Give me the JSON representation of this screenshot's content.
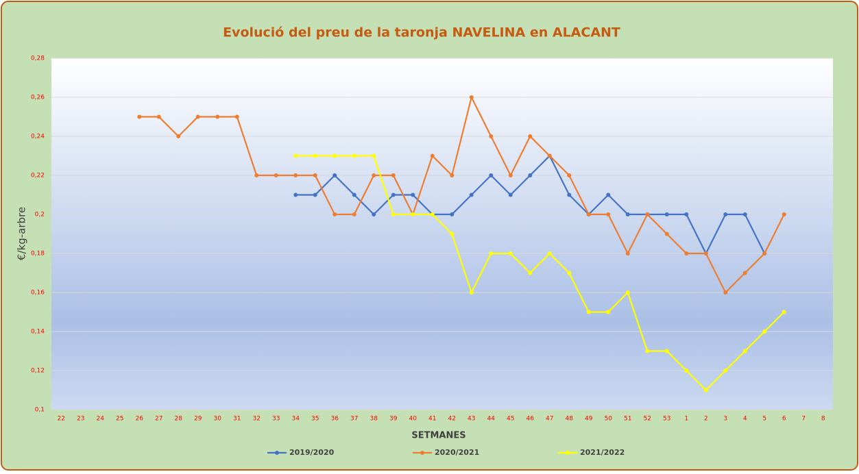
{
  "chart_data": {
    "type": "line",
    "title": "Evolució del preu de la  taronja NAVELINA en ALACANT",
    "xlabel": "SETMANES",
    "ylabel": "€/kg-arbre",
    "categories": [
      "22",
      "23",
      "24",
      "25",
      "26",
      "27",
      "28",
      "29",
      "30",
      "31",
      "32",
      "33",
      "34",
      "35",
      "36",
      "37",
      "38",
      "39",
      "40",
      "41",
      "42",
      "43",
      "44",
      "45",
      "46",
      "47",
      "48",
      "49",
      "50",
      "51",
      "52",
      "53",
      "1",
      "2",
      "3",
      "4",
      "5",
      "6",
      "7",
      "8"
    ],
    "series": [
      {
        "name": "2019/2020",
        "color": "#4472c4",
        "values": [
          null,
          null,
          null,
          null,
          null,
          null,
          null,
          null,
          null,
          null,
          null,
          null,
          0.21,
          0.21,
          0.22,
          0.21,
          0.2,
          0.21,
          0.21,
          0.2,
          0.2,
          0.21,
          0.22,
          0.21,
          0.22,
          0.23,
          0.21,
          0.2,
          0.21,
          0.2,
          0.2,
          0.2,
          0.2,
          0.18,
          0.2,
          0.2,
          0.18,
          null,
          null,
          null
        ]
      },
      {
        "name": "2020/2021",
        "color": "#ed7d31",
        "values": [
          null,
          null,
          null,
          null,
          0.25,
          0.25,
          0.24,
          0.25,
          0.25,
          0.25,
          0.22,
          0.22,
          0.22,
          0.22,
          0.2,
          0.2,
          0.22,
          0.22,
          0.2,
          0.23,
          0.22,
          0.26,
          0.24,
          0.22,
          0.24,
          0.23,
          0.22,
          0.2,
          0.2,
          0.18,
          0.2,
          0.19,
          0.18,
          0.18,
          0.16,
          0.17,
          0.18,
          0.2,
          null,
          null
        ]
      },
      {
        "name": "2021/2022",
        "color": "#ffff00",
        "values": [
          null,
          null,
          null,
          null,
          null,
          null,
          null,
          null,
          null,
          null,
          null,
          null,
          0.23,
          0.23,
          0.23,
          0.23,
          0.23,
          0.2,
          0.2,
          0.2,
          0.19,
          0.16,
          0.18,
          0.18,
          0.17,
          0.18,
          0.17,
          0.15,
          0.15,
          0.16,
          0.13,
          0.13,
          0.12,
          0.11,
          0.12,
          0.13,
          0.14,
          0.15,
          null,
          null
        ]
      }
    ],
    "ylim": [
      0.1,
      0.28
    ],
    "yticks": [
      {
        "value": 0.1,
        "label": "0,1"
      },
      {
        "value": 0.12,
        "label": "0,12"
      },
      {
        "value": 0.14,
        "label": "0,14"
      },
      {
        "value": 0.16,
        "label": "0,16"
      },
      {
        "value": 0.18,
        "label": "0,18"
      },
      {
        "value": 0.2,
        "label": "0,2"
      },
      {
        "value": 0.22,
        "label": "0,22"
      },
      {
        "value": 0.24,
        "label": "0,24"
      },
      {
        "value": 0.26,
        "label": "0,26"
      },
      {
        "value": 0.28,
        "label": "0,28"
      }
    ],
    "grid": true
  }
}
